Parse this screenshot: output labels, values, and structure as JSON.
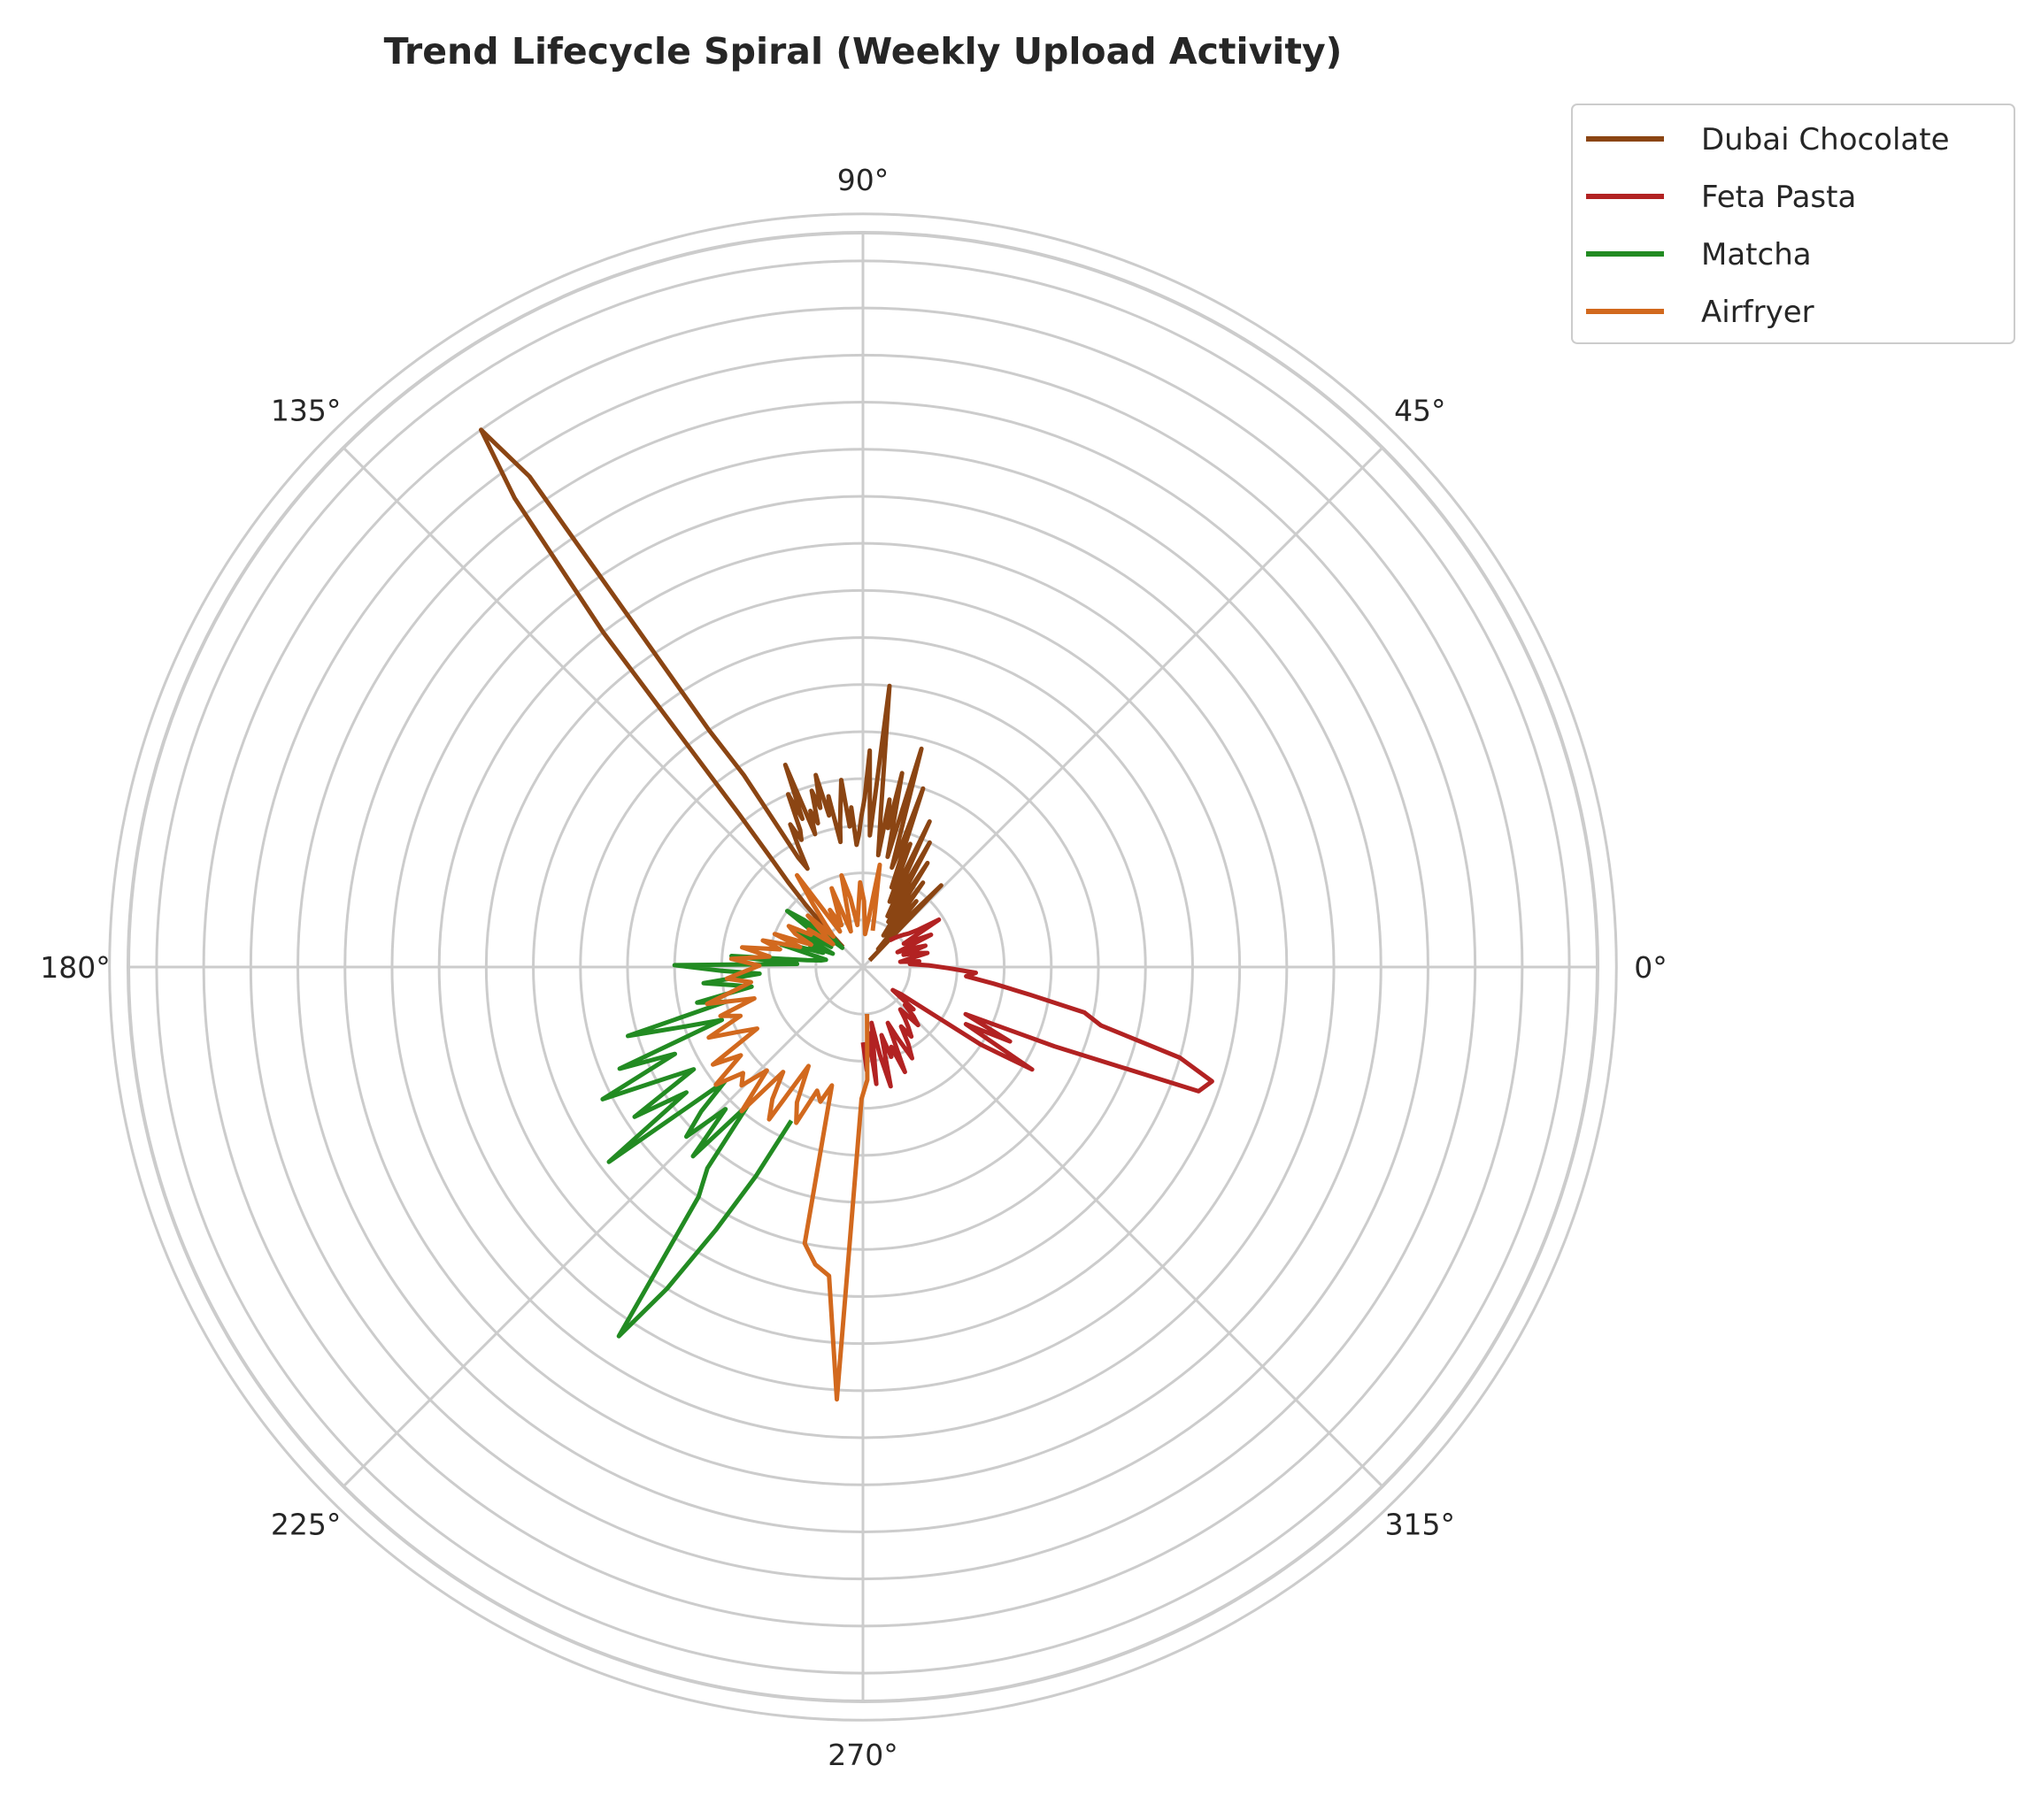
{
  "chart_data": {
    "type": "line",
    "subtype": "polar-spiral",
    "title": "Trend Lifecycle Spiral (Weekly Upload Activity)",
    "theta_tick_labels": [
      "0°",
      "45°",
      "90°",
      "135°",
      "180°",
      "225°",
      "270°",
      "315°"
    ],
    "theta_ticks_deg": [
      0,
      45,
      90,
      135,
      180,
      225,
      270,
      315
    ],
    "r_gridlines": [
      50,
      100,
      150,
      200,
      250,
      300,
      350,
      400,
      450,
      500,
      550,
      600,
      650,
      700,
      750,
      800
    ],
    "rlim": [
      0,
      780
    ],
    "grid": true,
    "legend_position": "upper-right outside",
    "series": [
      {
        "name": "Dubai Chocolate",
        "color": "#8B4513",
        "theta_range_deg": [
          45,
          135
        ],
        "values": [
          10,
          120,
          80,
          35,
          25,
          90,
          60,
          45,
          110,
          70,
          40,
          130,
          85,
          55,
          150,
          95,
          60,
          170,
          100,
          75,
          140,
          90,
          200,
          130,
          110,
          240,
          160,
          120,
          210,
          150,
          180,
          120,
          165,
          300,
          190,
          140,
          230,
          180,
          160,
          140,
          130,
          170,
          150,
          200,
          175,
          155,
          135,
          185,
          165,
          210,
          175,
          195,
          160,
          175,
          150,
          230,
          170,
          200,
          160,
          150,
          170,
          145,
          120,
          135,
          240,
          300,
          630,
          700,
          620,
          450,
          210,
          150,
          120,
          90,
          60,
          30
        ]
      },
      {
        "name": "Feta Pasta",
        "color": "#B22222",
        "theta_range_deg": [
          -90,
          45
        ],
        "values": [
          80,
          110,
          70,
          125,
          60,
          95,
          130,
          75,
          100,
          90,
          120,
          65,
          85,
          110,
          95,
          75,
          90,
          80,
          70,
          60,
          85,
          75,
          60,
          70,
          40,
          50,
          150,
          210,
          125,
          175,
          120,
          220,
          380,
          390,
          350,
          260,
          240,
          180,
          140,
          110,
          120,
          90,
          70,
          50,
          60,
          40,
          50,
          70,
          60,
          45,
          70,
          55,
          40,
          80,
          60,
          50,
          95,
          70,
          60,
          55,
          50,
          45,
          40
        ]
      },
      {
        "name": "Matcha",
        "color": "#228B22",
        "theta_range_deg": [
          135,
          245
        ],
        "values": [
          60,
          30,
          45,
          80,
          100,
          55,
          40,
          70,
          85,
          50,
          35,
          60,
          45,
          70,
          90,
          55,
          40,
          45,
          60,
          140,
          70,
          200,
          150,
          110,
          170,
          140,
          120,
          180,
          150,
          260,
          200,
          160,
          280,
          220,
          310,
          250,
          210,
          290,
          230,
          340,
          190,
          230,
          260,
          210,
          270,
          190,
          270,
          300,
          470,
          400,
          320,
          250,
          180
        ]
      },
      {
        "name": "Airfryer",
        "color": "#D2691E",
        "theta_range_deg": [
          75,
          275
        ],
        "values": [
          40,
          60,
          110,
          50,
          35,
          70,
          90,
          60,
          45,
          75,
          100,
          55,
          40,
          90,
          65,
          50,
          70,
          45,
          120,
          85,
          60,
          45,
          80,
          55,
          40,
          70,
          65,
          90,
          80,
          60,
          100,
          70,
          110,
          90,
          130,
          100,
          140,
          110,
          125,
          145,
          120,
          140,
          170,
          120,
          160,
          140,
          180,
          150,
          130,
          190,
          160,
          200,
          170,
          180,
          150,
          200,
          140,
          170,
          190,
          120,
          160,
          180,
          140,
          150,
          130,
          300,
          320,
          330,
          460,
          140,
          120,
          50
        ]
      }
    ]
  }
}
